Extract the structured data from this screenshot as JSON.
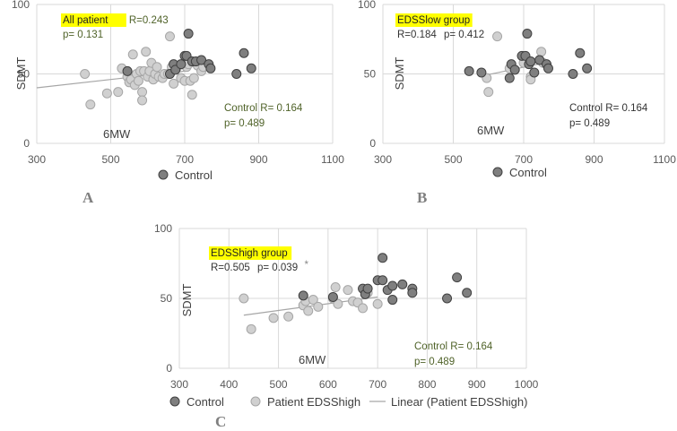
{
  "colors": {
    "control_fill": "#7f7f7f",
    "control_stroke": "#404040",
    "patient_fill": "#d0d0d0",
    "patient_stroke": "#a6a6a6",
    "grid": "#d9d9d9",
    "highlight": "#ffff00",
    "green_text": "#4f6228",
    "line": "#a6a6a6",
    "panel_label": "#7f7f7f"
  },
  "chart_data": [
    {
      "type": "scatter",
      "panel_label": "A",
      "xlabel": "6MW",
      "ylabel": "SDMT",
      "xlim": [
        300,
        1100
      ],
      "ylim": [
        0,
        100
      ],
      "xticks": [
        "300",
        "500",
        "700",
        "900",
        "1100"
      ],
      "yticks": [
        "0",
        "50",
        "100"
      ],
      "group_label": "All patient",
      "stat_r": "R=0.243",
      "stat_p": "p= 0.131",
      "control_r": "Control R= 0.164",
      "control_p": "p= 0.489",
      "legend": [
        "Control"
      ],
      "series": [
        {
          "name": "Patient",
          "points": [
            [
              430,
              50
            ],
            [
              445,
              28
            ],
            [
              490,
              36
            ],
            [
              520,
              37
            ],
            [
              530,
              54
            ],
            [
              545,
              48
            ],
            [
              550,
              44
            ],
            [
              555,
              46
            ],
            [
              560,
              64
            ],
            [
              565,
              42
            ],
            [
              570,
              50
            ],
            [
              575,
              45
            ],
            [
              580,
              52
            ],
            [
              585,
              37
            ],
            [
              585,
              31
            ],
            [
              590,
              52
            ],
            [
              595,
              66
            ],
            [
              600,
              48
            ],
            [
              605,
              52
            ],
            [
              610,
              58
            ],
            [
              615,
              46
            ],
            [
              620,
              50
            ],
            [
              625,
              55
            ],
            [
              630,
              48
            ],
            [
              640,
              47
            ],
            [
              645,
              50
            ],
            [
              655,
              50
            ],
            [
              660,
              77
            ],
            [
              665,
              55
            ],
            [
              670,
              43
            ],
            [
              680,
              55
            ],
            [
              690,
              47
            ],
            [
              700,
              45
            ],
            [
              705,
              55
            ],
            [
              710,
              57
            ],
            [
              715,
              45
            ],
            [
              720,
              35
            ],
            [
              725,
              47
            ],
            [
              735,
              56
            ],
            [
              745,
              52
            ],
            [
              750,
              55
            ]
          ]
        },
        {
          "name": "Control",
          "points": [
            [
              545,
              52
            ],
            [
              660,
              50
            ],
            [
              670,
              57
            ],
            [
              675,
              53
            ],
            [
              690,
              57
            ],
            [
              700,
              63
            ],
            [
              705,
              63
            ],
            [
              710,
              79
            ],
            [
              720,
              59
            ],
            [
              730,
              59
            ],
            [
              745,
              60
            ],
            [
              765,
              57
            ],
            [
              770,
              54
            ],
            [
              840,
              50
            ],
            [
              860,
              65
            ],
            [
              880,
              54
            ]
          ]
        }
      ],
      "trendline": {
        "x": [
          300,
          700
        ],
        "y": [
          40,
          52
        ]
      }
    },
    {
      "type": "scatter",
      "panel_label": "B",
      "xlabel": "6MW",
      "ylabel": "SDMT",
      "xlim": [
        300,
        1100
      ],
      "ylim": [
        0,
        100
      ],
      "xticks": [
        "300",
        "500",
        "700",
        "900",
        "1100"
      ],
      "yticks": [
        "0",
        "50",
        "100"
      ],
      "group_label": "EDSSlow group",
      "stat_r": "R=0.184",
      "stat_p": "p= 0.412",
      "control_r": "Control R= 0.164",
      "control_p": "p= 0.489",
      "legend": [
        "Control"
      ],
      "series": [
        {
          "name": "Patient",
          "points": [
            [
              595,
              47
            ],
            [
              600,
              37
            ],
            [
              625,
              77
            ],
            [
              660,
              54
            ],
            [
              700,
              58
            ],
            [
              720,
              48
            ],
            [
              720,
              46
            ],
            [
              750,
              66
            ],
            [
              755,
              58
            ]
          ]
        },
        {
          "name": "Control",
          "points": [
            [
              545,
              52
            ],
            [
              580,
              51
            ],
            [
              660,
              47
            ],
            [
              665,
              57
            ],
            [
              675,
              53
            ],
            [
              695,
              63
            ],
            [
              705,
              63
            ],
            [
              710,
              79
            ],
            [
              715,
              57
            ],
            [
              720,
              59
            ],
            [
              730,
              51
            ],
            [
              745,
              60
            ],
            [
              765,
              57
            ],
            [
              770,
              54
            ],
            [
              840,
              50
            ],
            [
              860,
              65
            ],
            [
              880,
              54
            ]
          ]
        }
      ],
      "trendline": {
        "x": [
          590,
          760
        ],
        "y": [
          49,
          58
        ]
      }
    },
    {
      "type": "scatter",
      "panel_label": "C",
      "xlabel": "6MW",
      "ylabel": "SDMT",
      "xlim": [
        300,
        1000
      ],
      "ylim": [
        0,
        100
      ],
      "xticks": [
        "300",
        "400",
        "500",
        "600",
        "700",
        "800",
        "900",
        "1000"
      ],
      "yticks": [
        "0",
        "50",
        "100"
      ],
      "group_label": "EDSShigh group",
      "stat_r": "R=0.505",
      "stat_p": "p= 0.039",
      "stat_mark": "*",
      "control_r": "Control R= 0.164",
      "control_p": "p= 0.489",
      "legend": [
        "Control",
        "Patient EDSShigh",
        "Linear (Patient EDSShigh)"
      ],
      "series": [
        {
          "name": "Patient EDSShigh",
          "points": [
            [
              430,
              50
            ],
            [
              445,
              28
            ],
            [
              490,
              36
            ],
            [
              520,
              37
            ],
            [
              550,
              45
            ],
            [
              555,
              48
            ],
            [
              560,
              41
            ],
            [
              570,
              49
            ],
            [
              580,
              44
            ],
            [
              610,
              50
            ],
            [
              615,
              58
            ],
            [
              620,
              46
            ],
            [
              640,
              56
            ],
            [
              650,
              48
            ],
            [
              660,
              47
            ],
            [
              670,
              43
            ],
            [
              680,
              54
            ],
            [
              700,
              46
            ]
          ]
        },
        {
          "name": "Control",
          "points": [
            [
              550,
              52
            ],
            [
              610,
              51
            ],
            [
              670,
              57
            ],
            [
              675,
              53
            ],
            [
              680,
              57
            ],
            [
              700,
              63
            ],
            [
              710,
              63
            ],
            [
              710,
              79
            ],
            [
              720,
              56
            ],
            [
              730,
              59
            ],
            [
              730,
              49
            ],
            [
              750,
              60
            ],
            [
              770,
              57
            ],
            [
              770,
              54
            ],
            [
              840,
              50
            ],
            [
              860,
              65
            ],
            [
              880,
              54
            ]
          ]
        }
      ],
      "trendline": {
        "x": [
          430,
          700
        ],
        "y": [
          38,
          51
        ]
      }
    }
  ]
}
